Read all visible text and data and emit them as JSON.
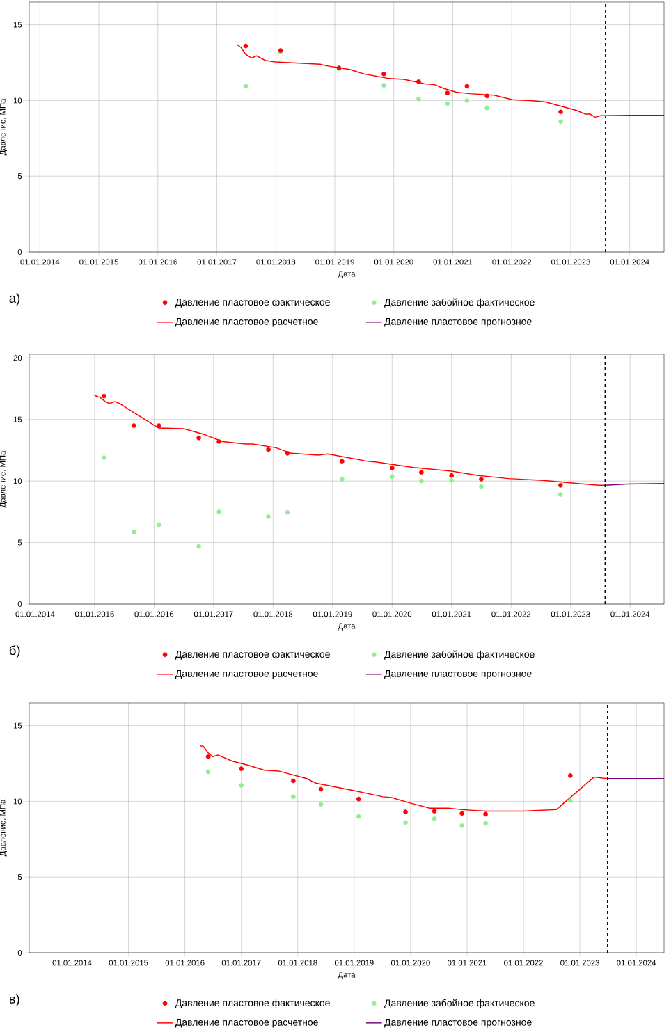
{
  "chart_data": [
    {
      "type": "line",
      "xlabel": "Дата",
      "ylabel": "Давление, МПа",
      "annotations": [
        "а)"
      ],
      "xlim": [
        "2013-10-27",
        "2024-08-01"
      ],
      "ylim": [
        0,
        16.5
      ],
      "yticks": [
        0,
        5,
        10,
        15
      ],
      "xticks": [
        {
          "value": "2014-01-01",
          "label": "01.01.2014"
        },
        {
          "value": "2015-01-01",
          "label": "01.01.2015"
        },
        {
          "value": "2016-01-01",
          "label": "01.01.2016"
        },
        {
          "value": "2017-01-01",
          "label": "01.01.2017"
        },
        {
          "value": "2018-01-01",
          "label": "01.01.2018"
        },
        {
          "value": "2019-01-01",
          "label": "01.01.2019"
        },
        {
          "value": "2020-01-01",
          "label": "01.01.2020"
        },
        {
          "value": "2021-01-01",
          "label": "01.01.2021"
        },
        {
          "value": "2022-01-01",
          "label": "01.01.2022"
        },
        {
          "value": "2023-01-01",
          "label": "01.01.2023"
        },
        {
          "value": "2024-01-01",
          "label": "01.01.2024"
        }
      ],
      "grid": true,
      "legend": "bottom",
      "ref_lines": [
        {
          "axis": "x",
          "value": "2023-08-04",
          "color": "#000000",
          "line_style": "dashed"
        }
      ],
      "series": [
        {
          "name": "Давление пластовое фактическое",
          "type": "scatter",
          "marker": "circle",
          "color": "#ff0000",
          "x": [
            "2017-06-29",
            "2018-01-30",
            "2019-01-27",
            "2019-10-31",
            "2020-06-03",
            "2020-11-29",
            "2021-03-30",
            "2021-08-01",
            "2022-10-31"
          ],
          "values": [
            13.6,
            13.3,
            12.15,
            11.75,
            11.25,
            10.5,
            10.95,
            10.3,
            9.25
          ]
        },
        {
          "name": "Давление забойное фактическое",
          "type": "scatter",
          "marker": "circle",
          "color": "#90ee90",
          "x": [
            "2017-06-29",
            "2018-01-30",
            "2019-01-27",
            "2019-10-31",
            "2020-06-03",
            "2020-11-29",
            "2021-03-30",
            "2021-08-01",
            "2022-10-31"
          ],
          "values": [
            10.95,
            13.2,
            12.1,
            11.0,
            10.1,
            9.8,
            10.0,
            9.5,
            8.6
          ]
        },
        {
          "name": "Давление пластовое расчетное",
          "color": "#ff0000",
          "x": [
            "2017-05-05",
            "2017-05-31",
            "2017-06-29",
            "2017-08-04",
            "2017-09-03",
            "2017-10-27",
            "2017-12-28",
            "2018-10-02",
            "2018-11-07",
            "2019-04-02",
            "2019-07-02",
            "2019-12-03",
            "2020-03-04",
            "2020-07-13",
            "2020-09-10",
            "2020-11-04",
            "2021-01-23",
            "2021-04-17",
            "2021-09-13",
            "2022-01-05",
            "2022-04-21",
            "2022-07-28",
            "2023-02-03",
            "2023-04-02",
            "2023-05-01",
            "2023-05-31",
            "2023-07-06",
            "2023-08-04"
          ],
          "values": [
            13.7,
            13.5,
            13.05,
            12.8,
            12.95,
            12.65,
            12.55,
            12.4,
            12.3,
            12.05,
            11.75,
            11.45,
            11.4,
            11.1,
            11.05,
            10.8,
            10.55,
            10.45,
            10.35,
            10.05,
            10.0,
            9.9,
            9.35,
            9.1,
            9.1,
            8.9,
            9.0,
            9.0
          ]
        },
        {
          "name": "Давление пластовое прогнозное",
          "color": "#800080",
          "x": [
            "2023-08-04",
            "2024-01-01",
            "2024-08-01"
          ],
          "values": [
            9.0,
            9.02,
            9.02
          ]
        }
      ]
    },
    {
      "type": "line",
      "xlabel": "Дата",
      "ylabel": "Давление, МПа",
      "annotations": [
        "б)"
      ],
      "xlim": [
        "2013-11-26",
        "2024-07-28"
      ],
      "ylim": [
        0,
        20.3
      ],
      "yticks": [
        0,
        5,
        10,
        15,
        20
      ],
      "xticks": [
        {
          "value": "2014-01-01",
          "label": "01.01.2014"
        },
        {
          "value": "2015-01-01",
          "label": "01.01.2015"
        },
        {
          "value": "2016-01-01",
          "label": "01.01.2016"
        },
        {
          "value": "2017-01-01",
          "label": "01.01.2017"
        },
        {
          "value": "2018-01-01",
          "label": "01.01.2018"
        },
        {
          "value": "2019-01-01",
          "label": "01.01.2019"
        },
        {
          "value": "2020-01-01",
          "label": "01.01.2020"
        },
        {
          "value": "2021-01-01",
          "label": "01.01.2021"
        },
        {
          "value": "2022-01-01",
          "label": "01.01.2022"
        },
        {
          "value": "2023-01-01",
          "label": "01.01.2023"
        },
        {
          "value": "2024-01-01",
          "label": "01.01.2024"
        }
      ],
      "grid": true,
      "legend": "bottom",
      "ref_lines": [
        {
          "axis": "x",
          "value": "2023-08-01",
          "color": "#000000",
          "line_style": "dashed"
        }
      ],
      "series": [
        {
          "name": "Давление пластовое фактическое",
          "type": "scatter",
          "marker": "circle",
          "color": "#ff0000",
          "x": [
            "2015-02-28",
            "2015-08-30",
            "2016-01-30",
            "2016-10-02",
            "2017-02-03",
            "2017-12-03",
            "2018-03-30",
            "2019-02-28",
            "2020-01-01",
            "2020-06-29",
            "2021-01-01",
            "2021-07-02",
            "2022-10-31"
          ],
          "values": [
            16.9,
            14.5,
            14.5,
            13.5,
            13.2,
            12.55,
            12.25,
            11.6,
            11.05,
            10.7,
            10.45,
            10.15,
            9.65
          ]
        },
        {
          "name": "Давление забойное фактическое",
          "type": "scatter",
          "marker": "circle",
          "color": "#90ee90",
          "x": [
            "2015-02-28",
            "2015-08-30",
            "2016-01-30",
            "2016-10-02",
            "2017-02-03",
            "2017-12-03",
            "2018-03-30",
            "2019-02-28",
            "2020-01-01",
            "2020-06-29",
            "2021-01-01",
            "2021-07-02",
            "2022-10-31"
          ],
          "values": [
            11.9,
            5.85,
            6.45,
            4.7,
            7.5,
            7.1,
            7.45,
            10.15,
            10.35,
            10.0,
            10.05,
            9.55,
            8.9
          ]
        },
        {
          "name": "Давление пластовое расчетное",
          "color": "#ff0000",
          "x": [
            "2015-01-01",
            "2015-02-03",
            "2015-03-08",
            "2015-04-02",
            "2015-05-05",
            "2015-06-03",
            "2015-08-01",
            "2016-01-30",
            "2016-07-02",
            "2016-11-11",
            "2017-02-25",
            "2017-07-17",
            "2017-08-30",
            "2018-01-19",
            "2018-04-24",
            "2018-10-05",
            "2018-12-03",
            "2019-08-04",
            "2019-09-21",
            "2020-05-12",
            "2021-01-01",
            "2021-06-14",
            "2021-12-17",
            "2022-07-17",
            "2023-02-14",
            "2023-06-22",
            "2023-08-01"
          ],
          "values": [
            16.95,
            16.8,
            16.45,
            16.3,
            16.45,
            16.3,
            15.8,
            14.3,
            14.25,
            13.75,
            13.2,
            13.0,
            13.0,
            12.7,
            12.25,
            12.1,
            12.2,
            11.6,
            11.55,
            11.1,
            10.8,
            10.45,
            10.2,
            10.05,
            9.8,
            9.65,
            9.65
          ]
        },
        {
          "name": "Давление пластовое прогнозное",
          "color": "#800080",
          "x": [
            "2023-08-01",
            "2023-12-14",
            "2024-07-28"
          ],
          "values": [
            9.65,
            9.75,
            9.8
          ]
        }
      ]
    },
    {
      "type": "line",
      "xlabel": "Дата",
      "ylabel": "Давление, МПа",
      "annotations": [
        "в)"
      ],
      "xlim": [
        "2013-03-30",
        "2024-06-29"
      ],
      "ylim": [
        0,
        16.5
      ],
      "yticks": [
        0,
        5,
        10,
        15
      ],
      "xticks": [
        {
          "value": "2014-01-01",
          "label": "01.01.2014"
        },
        {
          "value": "2015-01-01",
          "label": "01.01.2015"
        },
        {
          "value": "2016-01-01",
          "label": "01.01.2016"
        },
        {
          "value": "2017-01-01",
          "label": "01.01.2017"
        },
        {
          "value": "2018-01-01",
          "label": "01.01.2018"
        },
        {
          "value": "2019-01-01",
          "label": "01.01.2019"
        },
        {
          "value": "2020-01-01",
          "label": "01.01.2020"
        },
        {
          "value": "2021-01-01",
          "label": "01.01.2021"
        },
        {
          "value": "2022-01-01",
          "label": "01.01.2022"
        },
        {
          "value": "2023-01-01",
          "label": "01.01.2023"
        },
        {
          "value": "2024-01-01",
          "label": "01.01.2024"
        }
      ],
      "grid": true,
      "legend": "bottom",
      "ref_lines": [
        {
          "axis": "x",
          "value": "2023-06-29",
          "color": "#000000",
          "line_style": "dashed"
        }
      ],
      "series": [
        {
          "name": "Давление пластовое фактическое",
          "type": "scatter",
          "marker": "circle",
          "color": "#ff0000",
          "x": [
            "2016-05-31",
            "2017-01-01",
            "2017-12-03",
            "2018-05-31",
            "2019-01-30",
            "2019-11-29",
            "2020-06-03",
            "2020-11-29",
            "2021-05-01",
            "2022-10-31"
          ],
          "values": [
            12.95,
            12.15,
            11.35,
            10.8,
            10.15,
            9.3,
            9.35,
            9.2,
            9.15,
            11.7
          ]
        },
        {
          "name": "Давление забойное фактическое",
          "type": "scatter",
          "marker": "circle",
          "color": "#90ee90",
          "x": [
            "2016-05-31",
            "2017-01-01",
            "2017-12-03",
            "2018-05-31",
            "2019-01-30",
            "2019-11-29",
            "2020-06-03",
            "2020-11-29",
            "2021-05-01",
            "2022-10-31"
          ],
          "values": [
            11.95,
            11.05,
            10.3,
            9.8,
            9.0,
            8.6,
            8.85,
            8.4,
            8.55,
            10.05
          ]
        },
        {
          "name": "Давление пластовое расчетное",
          "color": "#ff0000",
          "x": [
            "2016-04-06",
            "2016-04-28",
            "2016-05-31",
            "2016-06-29",
            "2016-08-04",
            "2016-11-04",
            "2017-02-10",
            "2017-05-31",
            "2017-08-30",
            "2018-02-28",
            "2018-04-28",
            "2019-01-05",
            "2019-07-06",
            "2019-08-30",
            "2019-12-25",
            "2020-05-05",
            "2020-09-03",
            "2020-11-29",
            "2021-05-01",
            "2021-08-30",
            "2021-12-28",
            "2022-04-06",
            "2022-08-01",
            "2023-04-02",
            "2023-06-29"
          ],
          "values": [
            13.65,
            13.65,
            13.2,
            12.95,
            13.05,
            12.65,
            12.4,
            12.05,
            12.0,
            11.5,
            11.2,
            10.7,
            10.3,
            10.25,
            9.9,
            9.55,
            9.55,
            9.45,
            9.35,
            9.35,
            9.35,
            9.4,
            9.45,
            11.6,
            11.5
          ]
        },
        {
          "name": "Давление пластовое прогнозное",
          "color": "#800080",
          "x": [
            "2023-06-29",
            "2023-12-21",
            "2024-06-29"
          ],
          "values": [
            11.5,
            11.5,
            11.5
          ]
        }
      ]
    }
  ]
}
